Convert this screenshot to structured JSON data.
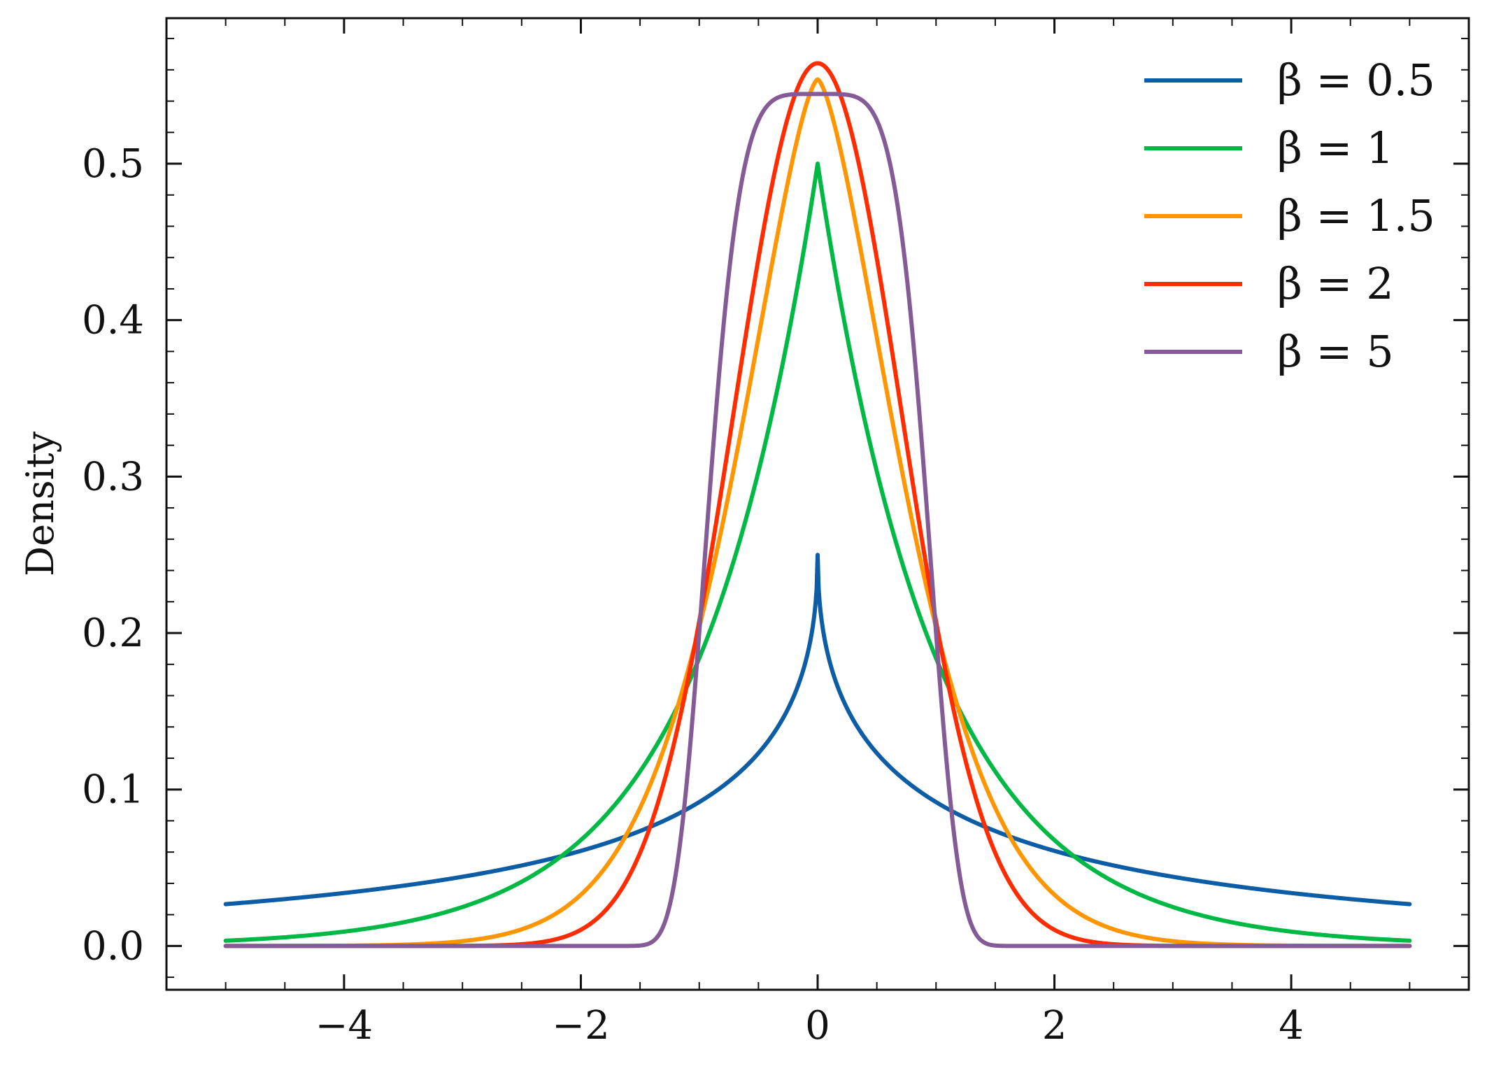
{
  "chart_data": {
    "type": "line",
    "title": "",
    "xlabel": "",
    "ylabel": "Density",
    "xlim": [
      -5.5,
      5.5
    ],
    "ylim": [
      -0.028,
      0.593
    ],
    "x_ticks": [
      -4,
      -2,
      0,
      2,
      4
    ],
    "x_tick_labels": [
      "−4",
      "−2",
      "0",
      "2",
      "4"
    ],
    "y_ticks": [
      0.0,
      0.1,
      0.2,
      0.3,
      0.4,
      0.5
    ],
    "y_tick_labels": [
      "0.0",
      "0.1",
      "0.2",
      "0.3",
      "0.4",
      "0.5"
    ],
    "grid": false,
    "legend_position": "top-right",
    "x_domain": [
      -5,
      5
    ],
    "series": [
      {
        "name": "β = 0.5",
        "beta": 0.5,
        "color": "#0C5DA5"
      },
      {
        "name": "β = 1",
        "beta": 1,
        "color": "#00B945"
      },
      {
        "name": "β = 1.5",
        "beta": 1.5,
        "color": "#FF9500"
      },
      {
        "name": "β = 2",
        "beta": 2,
        "color": "#FF2C00"
      },
      {
        "name": "β = 5",
        "beta": 5,
        "color": "#845B97"
      }
    ]
  }
}
